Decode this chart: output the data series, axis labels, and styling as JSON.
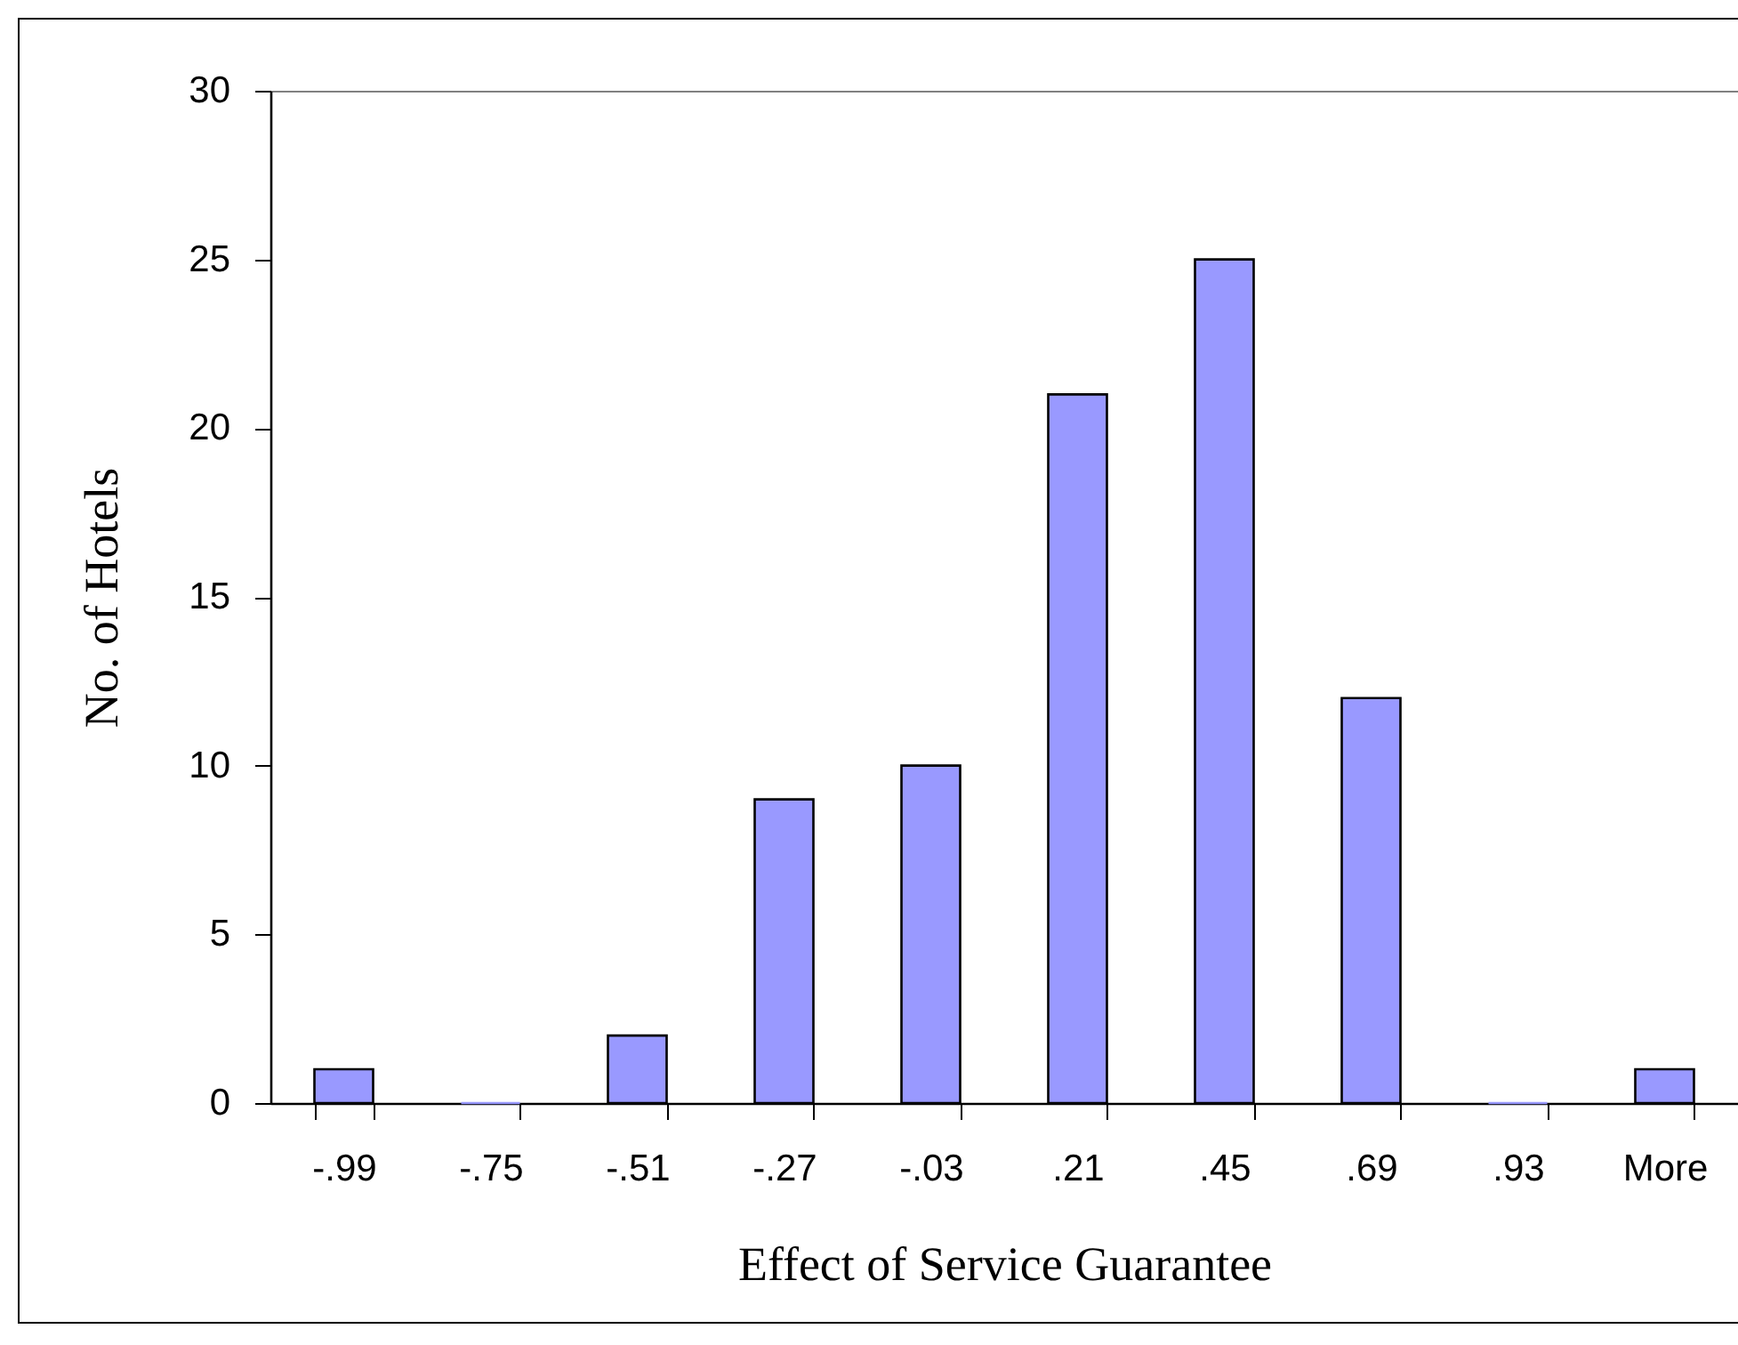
{
  "chart_data": {
    "type": "bar",
    "xlabel": "Effect of Service Guarantee",
    "ylabel": "No. of Hotels",
    "categories": [
      "-.99",
      "-.75",
      "-.51",
      "-.27",
      "-.03",
      ".21",
      ".45",
      ".69",
      ".93",
      "More"
    ],
    "values": [
      1,
      0,
      2,
      9,
      10,
      21,
      25,
      12,
      0,
      1
    ],
    "color": "#9999ff",
    "ylim": [
      0,
      30
    ],
    "yticks": [
      0,
      5,
      10,
      15,
      20,
      25,
      30
    ]
  }
}
